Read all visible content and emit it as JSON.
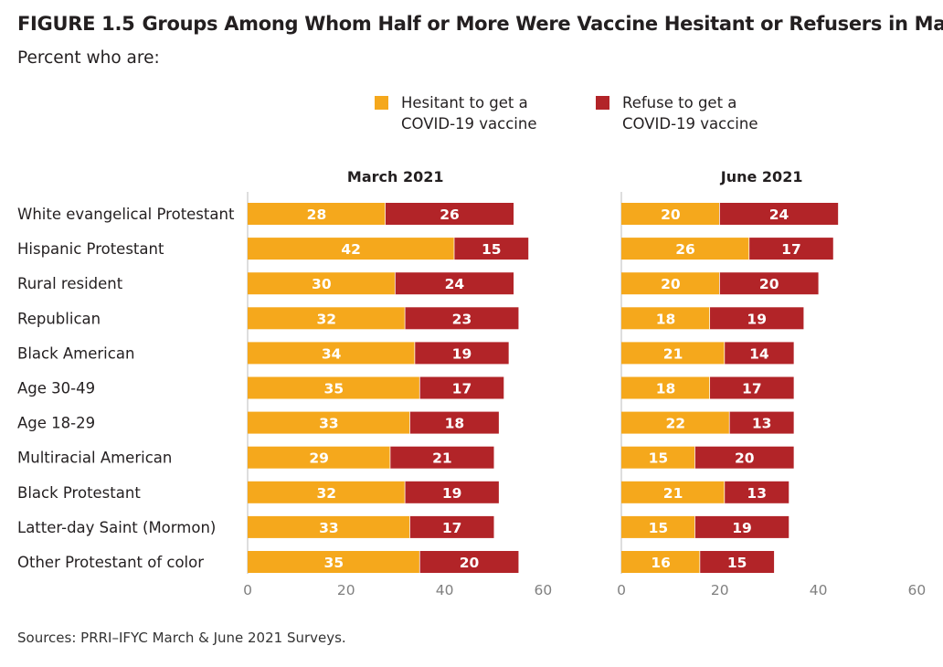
{
  "figure": {
    "number": "FIGURE 1.5",
    "title": "Groups Among Whom Half or More Were Vaccine Hesitant or Refusers in March",
    "subtitle": "Percent who are:",
    "source": "Sources: PRRI–IFYC March & June 2021 Surveys."
  },
  "legend": [
    {
      "line1": "Hesitant to get a",
      "line2": "COVID-19 vaccine",
      "color": "#f5a81c"
    },
    {
      "line1": "Refuse to get a",
      "line2": "COVID-19 vaccine",
      "color": "#b22428"
    }
  ],
  "chart_data": [
    {
      "type": "bar",
      "orientation": "horizontal",
      "stacked": true,
      "title": "March 2021",
      "categories": [
        "White evangelical Protestant",
        "Hispanic Protestant",
        "Rural resident",
        "Republican",
        "Black American",
        "Age 30-49",
        "Age 18-29",
        "Multiracial American",
        "Black Protestant",
        "Latter-day Saint (Mormon)",
        "Other Protestant of color"
      ],
      "series": [
        {
          "name": "Hesitant to get a COVID-19 vaccine",
          "color": "#f5a81c",
          "values": [
            28,
            42,
            30,
            32,
            34,
            35,
            33,
            29,
            32,
            33,
            35
          ]
        },
        {
          "name": "Refuse to get a COVID-19 vaccine",
          "color": "#b22428",
          "values": [
            26,
            15,
            24,
            23,
            19,
            17,
            18,
            21,
            19,
            17,
            20
          ]
        }
      ],
      "xlim": [
        0,
        60
      ],
      "xticks": [
        0,
        20,
        40,
        60
      ],
      "grid": false,
      "legend_position": "top-right"
    },
    {
      "type": "bar",
      "orientation": "horizontal",
      "stacked": true,
      "title": "June 2021",
      "categories": [
        "White evangelical Protestant",
        "Hispanic Protestant",
        "Rural resident",
        "Republican",
        "Black American",
        "Age 30-49",
        "Age 18-29",
        "Multiracial American",
        "Black Protestant",
        "Latter-day Saint (Mormon)",
        "Other Protestant of color"
      ],
      "series": [
        {
          "name": "Hesitant to get a COVID-19 vaccine",
          "color": "#f5a81c",
          "values": [
            20,
            26,
            20,
            18,
            21,
            18,
            22,
            15,
            21,
            15,
            16
          ]
        },
        {
          "name": "Refuse to get a COVID-19 vaccine",
          "color": "#b22428",
          "values": [
            24,
            17,
            20,
            19,
            14,
            17,
            13,
            20,
            13,
            19,
            15
          ]
        }
      ],
      "xlim": [
        0,
        60
      ],
      "xticks": [
        0,
        20,
        40,
        60
      ],
      "grid": false,
      "legend_position": "top-right"
    }
  ]
}
